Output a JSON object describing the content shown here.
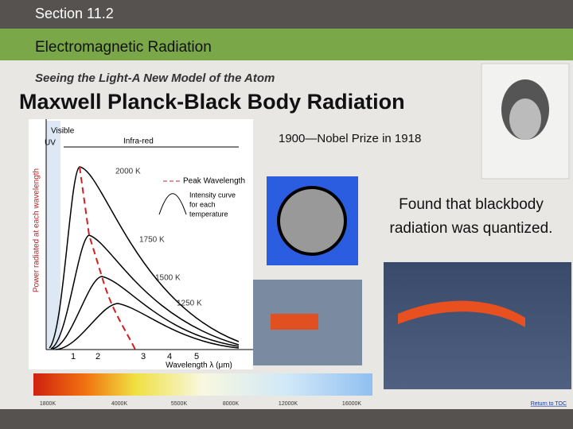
{
  "header": {
    "section": "Section 11.2",
    "chapter": "Electromagnetic Radiation",
    "subtitle": "Seeing the Light-A New Model of the Atom",
    "title": "Maxwell Planck-Black Body Radiation"
  },
  "plot": {
    "y_label": "Power radiated at each wavelength",
    "x_label": "Wavelength λ (μm)",
    "visible": "Visible",
    "uv": "UV",
    "infrared": "Infra-red",
    "peak_legend": "Peak Wavelength",
    "curve_legend": [
      "Intensity curve",
      "for each",
      "temperature"
    ],
    "x_ticks": [
      "1",
      "2",
      "3",
      "4",
      "5"
    ],
    "curve_labels": [
      "2000 K",
      "1750 K",
      "1500 K",
      "1250 K"
    ]
  },
  "spectrum": {
    "labels": [
      "1800K",
      "4000K",
      "5500K",
      "8000K",
      "12000K",
      "16000K"
    ]
  },
  "nobel": "1900—Nobel Prize in 1918",
  "body": [
    "Found that blackbody",
    "radiation was quantized."
  ],
  "footer": {
    "link": "Return to TOC"
  }
}
